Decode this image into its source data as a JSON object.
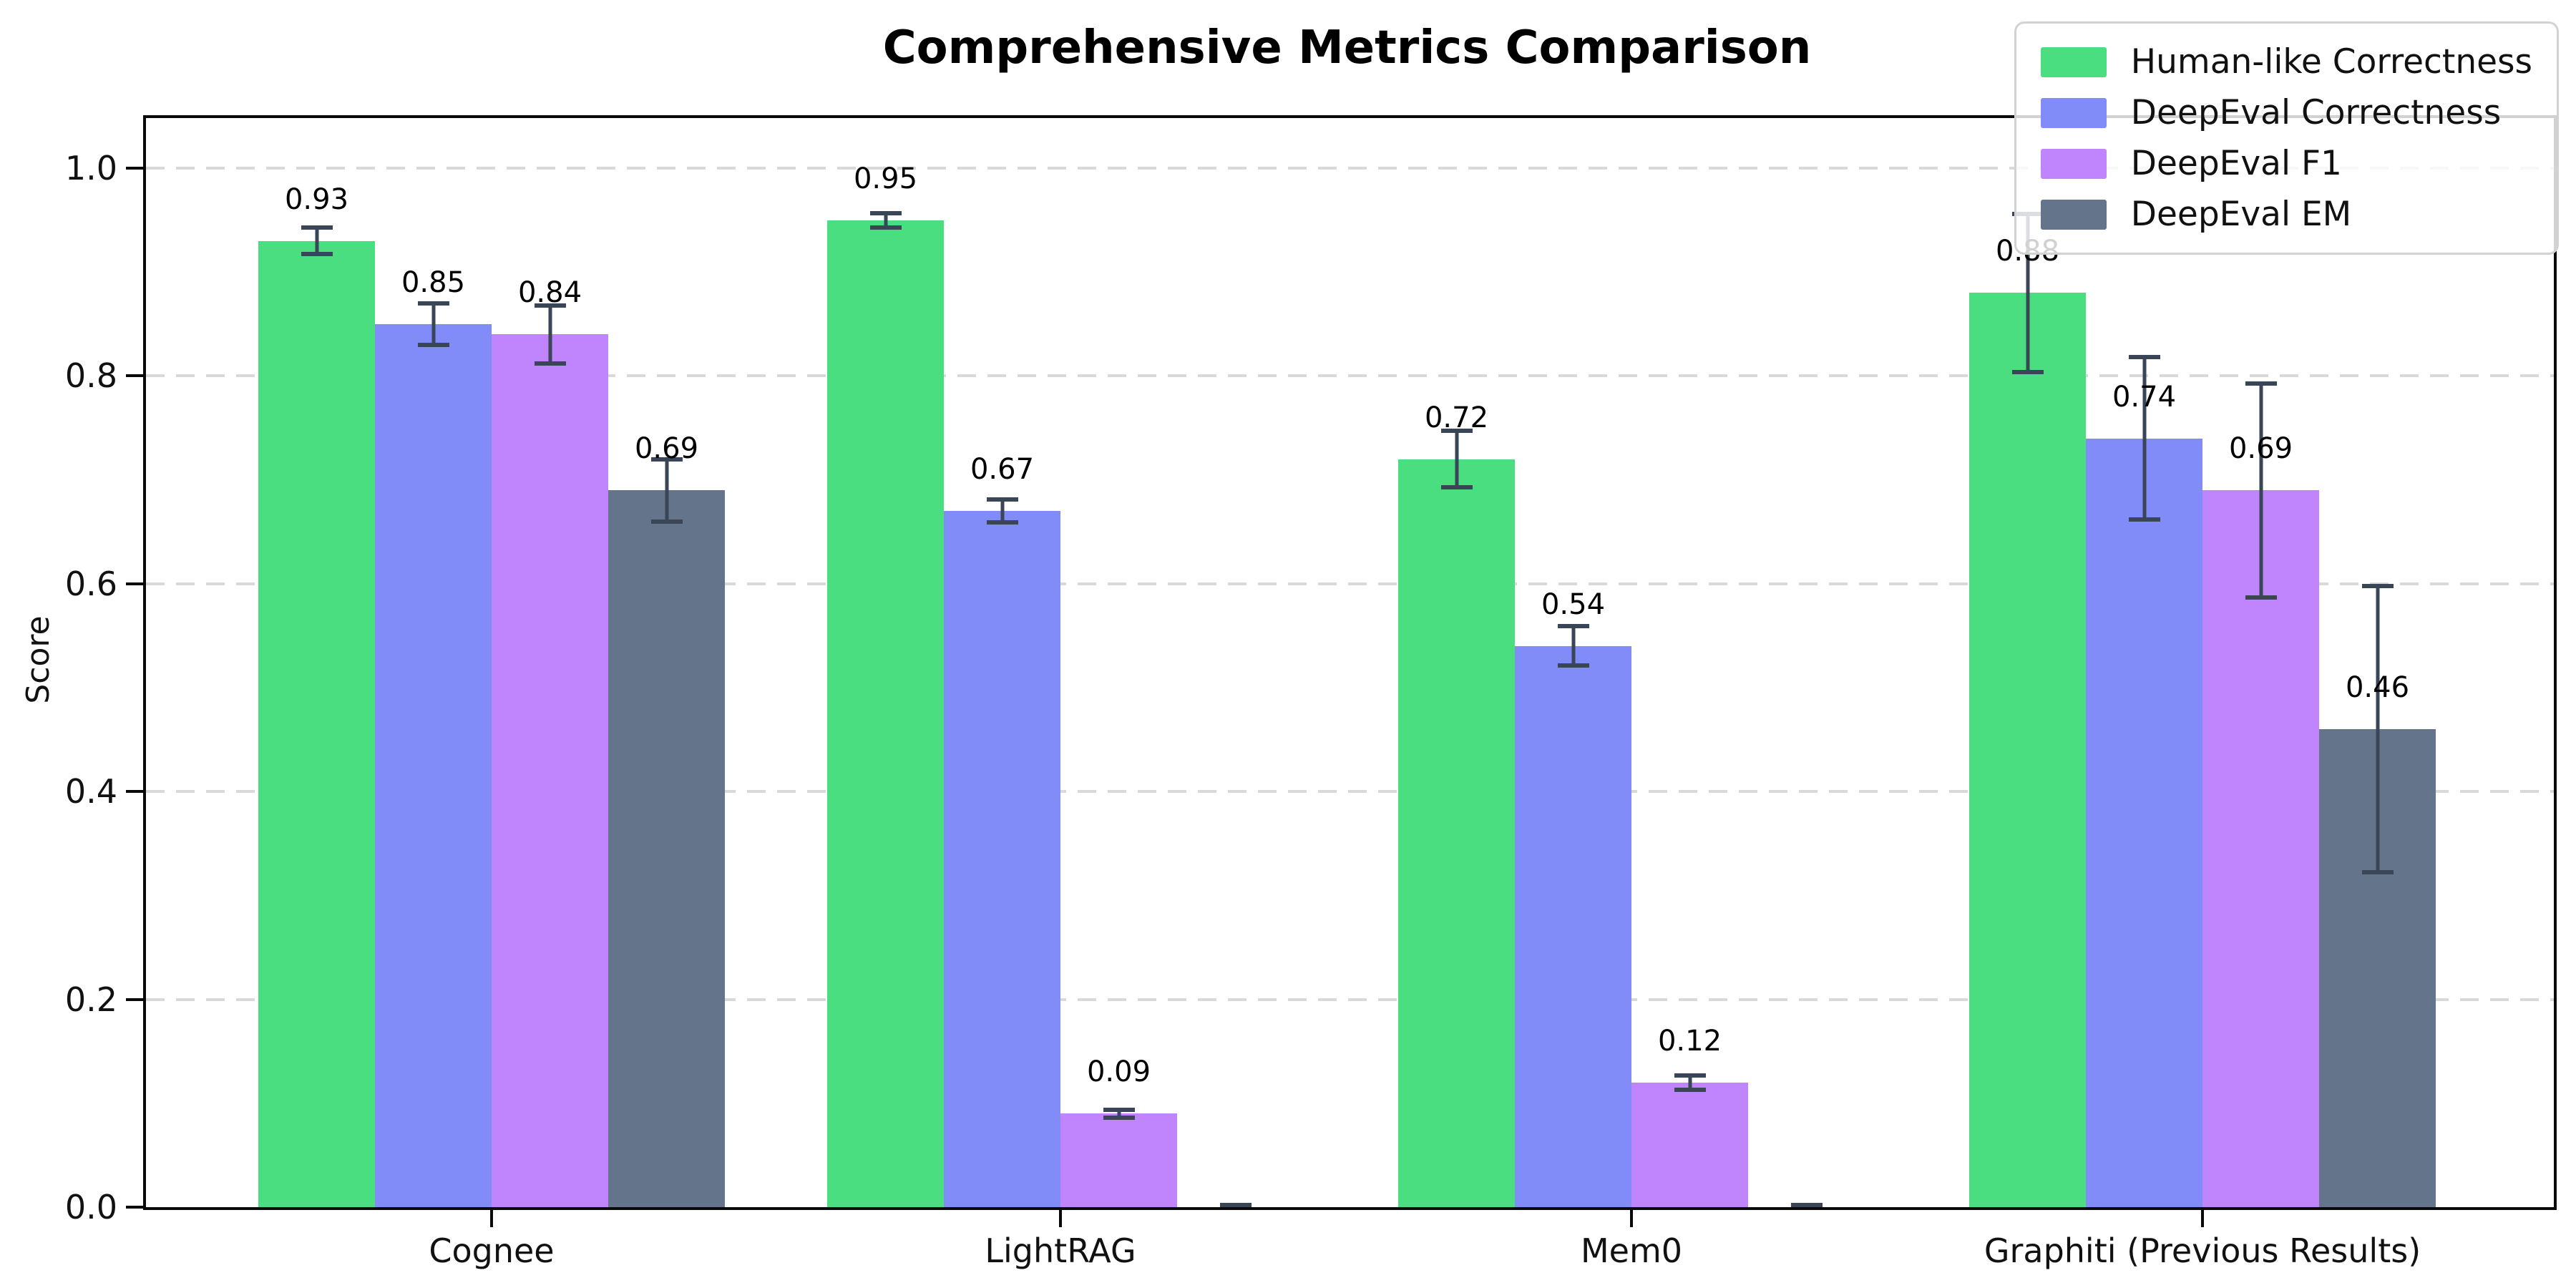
{
  "chart_data": {
    "type": "bar",
    "title": "Comprehensive Metrics Comparison",
    "xlabel": "",
    "ylabel": "Score",
    "ylim": [
      0,
      1.048
    ],
    "yticks": [
      {
        "v": 1.0,
        "label": "1.0"
      },
      {
        "v": 0.8,
        "label": "0.8"
      },
      {
        "v": 0.6,
        "label": "0.6"
      },
      {
        "v": 0.4,
        "label": "0.4"
      },
      {
        "v": 0.2,
        "label": "0.2"
      },
      {
        "v": 0.0,
        "label": "0.0"
      }
    ],
    "grid": "horizontal-dashed",
    "legend_position": "upper-right",
    "categories": [
      "Cognee",
      "LightRAG",
      "Mem0",
      "Graphiti (Previous Results)"
    ],
    "series": [
      {
        "name": "Human-like Correctness",
        "color": "#4ade80",
        "values": [
          0.93,
          0.95,
          0.72,
          0.88
        ],
        "errors": [
          0.015,
          0.009,
          0.029,
          0.078
        ],
        "labels": [
          "0.93",
          "0.95",
          "0.72",
          "0.88"
        ]
      },
      {
        "name": "DeepEval Correctness",
        "color": "#818cf8",
        "values": [
          0.85,
          0.67,
          0.54,
          0.74
        ],
        "errors": [
          0.022,
          0.013,
          0.021,
          0.08
        ],
        "labels": [
          "0.85",
          "0.67",
          "0.54",
          "0.74"
        ]
      },
      {
        "name": "DeepEval F1",
        "color": "#c084fc",
        "values": [
          0.84,
          0.09,
          0.12,
          0.69
        ],
        "errors": [
          0.03,
          0.006,
          0.009,
          0.105
        ],
        "labels": [
          "0.84",
          "0.09",
          "0.12",
          "0.69"
        ]
      },
      {
        "name": "DeepEval EM",
        "color": "#64748b",
        "values": [
          0.69,
          0.0,
          0.0,
          0.46
        ],
        "errors": [
          0.032,
          0.004,
          0.004,
          0.14
        ],
        "labels": [
          "0.69",
          "",
          "",
          "0.46"
        ]
      }
    ],
    "errorbar_color": "#3a4557"
  }
}
